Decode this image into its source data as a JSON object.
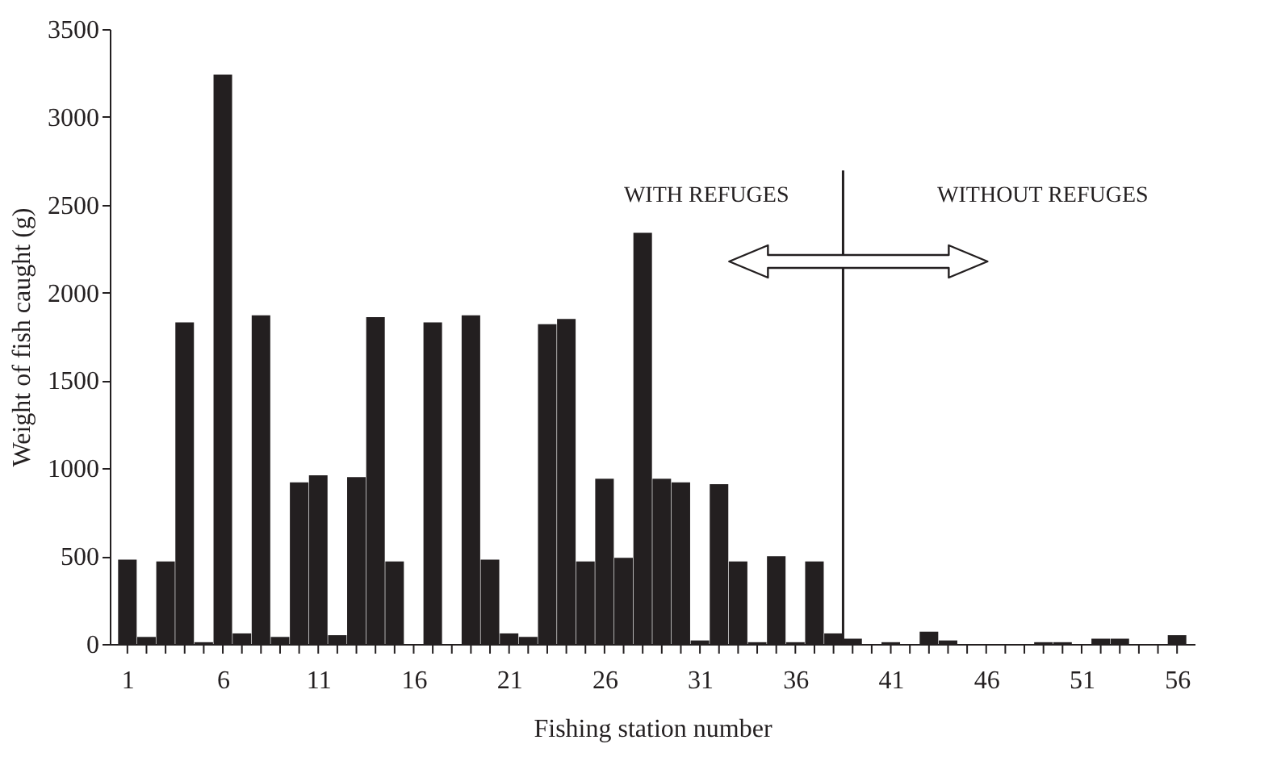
{
  "chart_data": {
    "type": "bar",
    "xlabel": "Fishing station number",
    "ylabel": "Weight of fish caught (g)",
    "x": [
      1,
      2,
      3,
      4,
      5,
      6,
      7,
      8,
      9,
      10,
      11,
      12,
      13,
      14,
      15,
      16,
      17,
      18,
      19,
      20,
      21,
      22,
      23,
      24,
      25,
      26,
      27,
      28,
      29,
      30,
      31,
      32,
      33,
      34,
      35,
      36,
      37,
      38,
      39,
      40,
      41,
      42,
      43,
      44,
      45,
      46,
      47,
      48,
      49,
      50,
      51,
      52,
      53,
      54,
      55,
      56
    ],
    "values": [
      480,
      40,
      470,
      1830,
      10,
      3240,
      60,
      1870,
      40,
      920,
      960,
      50,
      950,
      1860,
      470,
      0,
      1830,
      0,
      1870,
      480,
      60,
      40,
      1820,
      1850,
      470,
      940,
      490,
      2340,
      940,
      920,
      20,
      910,
      470,
      10,
      500,
      10,
      470,
      60,
      30,
      0,
      10,
      0,
      70,
      20,
      0,
      0,
      0,
      0,
      10,
      10,
      0,
      30,
      30,
      0,
      0,
      50
    ],
    "color": "#231f20",
    "xlim": [
      0.5,
      56.5
    ],
    "xticks": [
      1,
      {
        "value": 2,
        "label": null
      },
      {
        "value": 3,
        "label": null
      },
      {
        "value": 4,
        "label": null
      },
      {
        "value": 5,
        "label": null
      },
      6,
      {
        "value": 7,
        "label": null
      },
      {
        "value": 8,
        "label": null
      },
      {
        "value": 9,
        "label": null
      },
      {
        "value": 10,
        "label": null
      },
      11,
      {
        "value": 12,
        "label": null
      },
      {
        "value": 13,
        "label": null
      },
      {
        "value": 14,
        "label": null
      },
      {
        "value": 15,
        "label": null
      },
      16,
      {
        "value": 17,
        "label": null
      },
      {
        "value": 18,
        "label": null
      },
      {
        "value": 19,
        "label": null
      },
      {
        "value": 20,
        "label": null
      },
      21,
      {
        "value": 22,
        "label": null
      },
      {
        "value": 23,
        "label": null
      },
      {
        "value": 24,
        "label": null
      },
      {
        "value": 25,
        "label": null
      },
      26,
      {
        "value": 27,
        "label": null
      },
      {
        "value": 28,
        "label": null
      },
      {
        "value": 29,
        "label": null
      },
      {
        "value": 30,
        "label": null
      },
      31,
      {
        "value": 32,
        "label": null
      },
      {
        "value": 33,
        "label": null
      },
      {
        "value": 34,
        "label": null
      },
      {
        "value": 35,
        "label": null
      },
      36,
      {
        "value": 37,
        "label": null
      },
      {
        "value": 38,
        "label": null
      },
      {
        "value": 39,
        "label": null
      },
      {
        "value": 40,
        "label": null
      },
      41,
      {
        "value": 42,
        "label": null
      },
      {
        "value": 43,
        "label": null
      },
      {
        "value": 44,
        "label": null
      },
      {
        "value": 45,
        "label": null
      },
      46,
      {
        "value": 47,
        "label": null
      },
      {
        "value": 48,
        "label": null
      },
      {
        "value": 49,
        "label": null
      },
      {
        "value": 50,
        "label": null
      },
      51,
      {
        "value": 52,
        "label": null
      },
      {
        "value": 53,
        "label": null
      },
      {
        "value": 54,
        "label": null
      },
      {
        "value": 55,
        "label": null
      },
      56
    ],
    "ylim": [
      0,
      3500
    ],
    "yticks": [
      0,
      500,
      1000,
      1500,
      2000,
      2500,
      3000,
      3500
    ],
    "grid": false,
    "ref_lines": [
      {
        "axis": "x",
        "value": 38.5,
        "label": null,
        "color": "#231f20"
      }
    ],
    "annotations": [
      "WITH REFUGES",
      "WITHOUT REFUGES"
    ]
  }
}
